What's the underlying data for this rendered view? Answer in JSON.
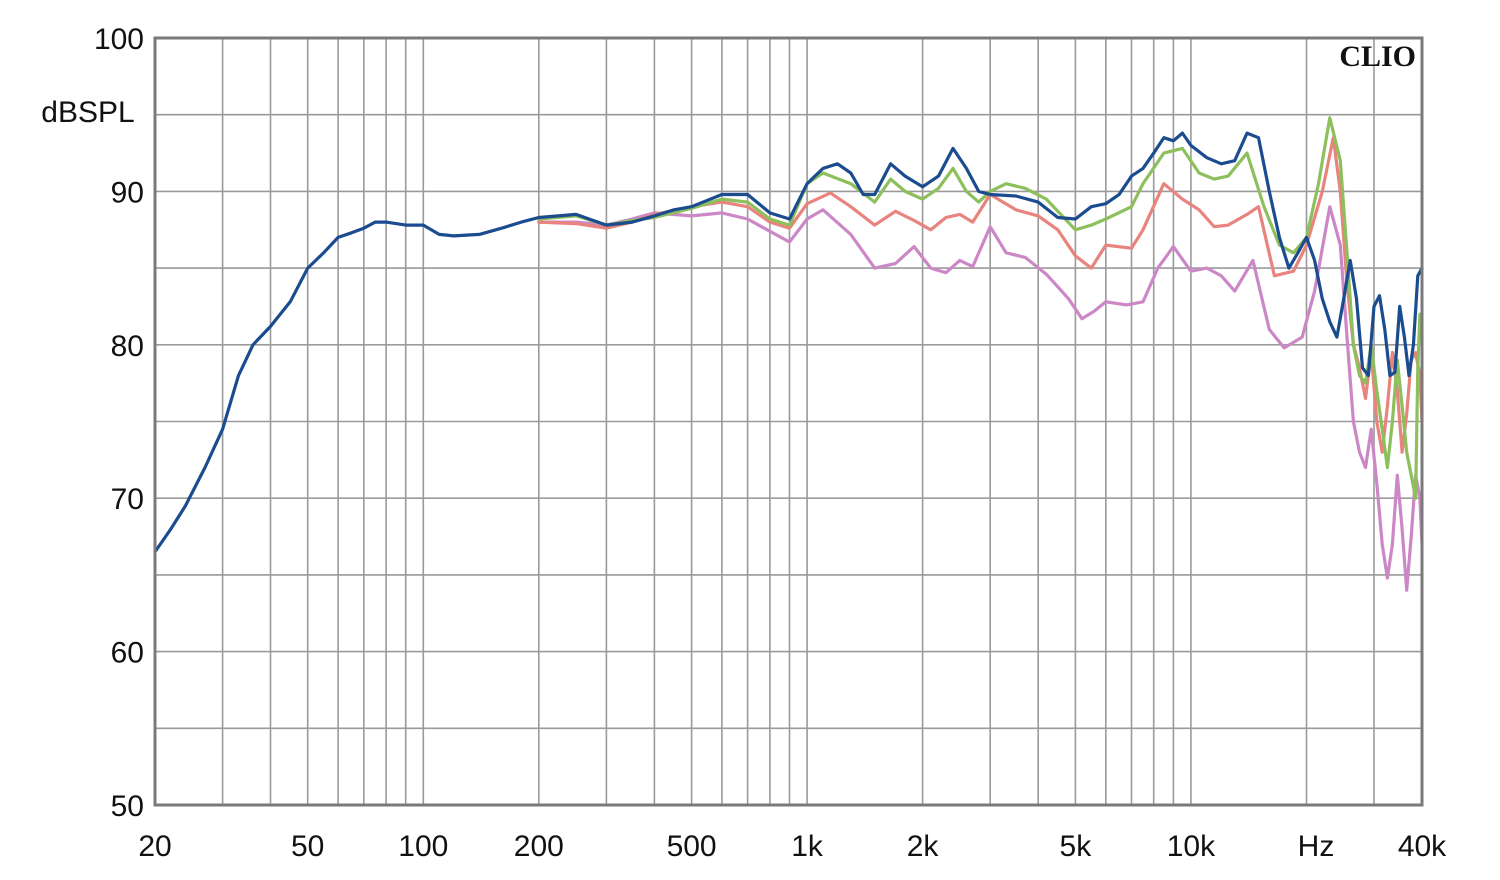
{
  "chart_data": {
    "type": "line",
    "title": "",
    "brand": "CLIO",
    "xlabel": "Hz",
    "ylabel": "dBSPL",
    "x_scale": "log",
    "xlim": [
      20,
      40000
    ],
    "ylim": [
      50,
      100
    ],
    "grid": true,
    "x_tick_labels": [
      {
        "value": 20,
        "label": "20"
      },
      {
        "value": 50,
        "label": "50"
      },
      {
        "value": 100,
        "label": "100"
      },
      {
        "value": 200,
        "label": "200"
      },
      {
        "value": 500,
        "label": "500"
      },
      {
        "value": 1000,
        "label": "1k"
      },
      {
        "value": 2000,
        "label": "2k"
      },
      {
        "value": 5000,
        "label": "5k"
      },
      {
        "value": 10000,
        "label": "10k"
      },
      {
        "value": 40000,
        "label": "40k"
      }
    ],
    "y_tick_labels": [
      {
        "value": 50,
        "label": "50"
      },
      {
        "value": 60,
        "label": "60"
      },
      {
        "value": 70,
        "label": "70"
      },
      {
        "value": 80,
        "label": "80"
      },
      {
        "value": 90,
        "label": "90"
      },
      {
        "value": 100,
        "label": "100"
      }
    ],
    "series": [
      {
        "color": "#cc88c6",
        "points": [
          [
            200,
            88.0
          ],
          [
            250,
            88.0
          ],
          [
            300,
            87.8
          ],
          [
            350,
            88.2
          ],
          [
            400,
            88.6
          ],
          [
            500,
            88.4
          ],
          [
            600,
            88.6
          ],
          [
            700,
            88.2
          ],
          [
            800,
            87.4
          ],
          [
            900,
            86.7
          ],
          [
            1000,
            88.2
          ],
          [
            1100,
            88.8
          ],
          [
            1300,
            87.2
          ],
          [
            1500,
            85.0
          ],
          [
            1700,
            85.3
          ],
          [
            1900,
            86.4
          ],
          [
            2100,
            85.0
          ],
          [
            2300,
            84.7
          ],
          [
            2500,
            85.5
          ],
          [
            2700,
            85.1
          ],
          [
            3000,
            87.7
          ],
          [
            3300,
            86.0
          ],
          [
            3700,
            85.7
          ],
          [
            4200,
            84.6
          ],
          [
            4800,
            83.0
          ],
          [
            5200,
            81.7
          ],
          [
            5600,
            82.2
          ],
          [
            6000,
            82.8
          ],
          [
            6800,
            82.6
          ],
          [
            7500,
            82.8
          ],
          [
            8200,
            85.0
          ],
          [
            9000,
            86.4
          ],
          [
            10000,
            84.8
          ],
          [
            11000,
            85.0
          ],
          [
            12000,
            84.5
          ],
          [
            13000,
            83.5
          ],
          [
            14500,
            85.5
          ],
          [
            16000,
            81.0
          ],
          [
            17500,
            79.8
          ],
          [
            19500,
            80.5
          ],
          [
            21000,
            83.5
          ],
          [
            23000,
            89.0
          ],
          [
            24500,
            86.5
          ],
          [
            25500,
            80.5
          ],
          [
            26500,
            75.0
          ],
          [
            27500,
            73.0
          ],
          [
            28500,
            72.0
          ],
          [
            29500,
            74.5
          ],
          [
            30500,
            71.0
          ],
          [
            31500,
            67.0
          ],
          [
            32500,
            64.8
          ],
          [
            33500,
            67.0
          ],
          [
            34500,
            71.5
          ],
          [
            35500,
            68.0
          ],
          [
            36500,
            64.0
          ],
          [
            37500,
            67.5
          ],
          [
            38500,
            71.5
          ],
          [
            39500,
            70.0
          ],
          [
            40000,
            67.0
          ]
        ]
      },
      {
        "color": "#e8837d",
        "points": [
          [
            200,
            88.0
          ],
          [
            250,
            87.9
          ],
          [
            300,
            87.6
          ],
          [
            350,
            88.0
          ],
          [
            400,
            88.5
          ],
          [
            500,
            89.0
          ],
          [
            600,
            89.3
          ],
          [
            700,
            89.0
          ],
          [
            800,
            88.0
          ],
          [
            900,
            87.6
          ],
          [
            1000,
            89.2
          ],
          [
            1150,
            89.9
          ],
          [
            1300,
            89.0
          ],
          [
            1500,
            87.8
          ],
          [
            1700,
            88.7
          ],
          [
            1900,
            88.1
          ],
          [
            2100,
            87.5
          ],
          [
            2300,
            88.3
          ],
          [
            2500,
            88.5
          ],
          [
            2700,
            88.0
          ],
          [
            3000,
            89.8
          ],
          [
            3500,
            88.8
          ],
          [
            4000,
            88.4
          ],
          [
            4500,
            87.5
          ],
          [
            5000,
            85.8
          ],
          [
            5500,
            85.0
          ],
          [
            6000,
            86.5
          ],
          [
            7000,
            86.3
          ],
          [
            7500,
            87.5
          ],
          [
            8500,
            90.5
          ],
          [
            9500,
            89.5
          ],
          [
            10500,
            88.8
          ],
          [
            11500,
            87.7
          ],
          [
            12500,
            87.8
          ],
          [
            14000,
            88.5
          ],
          [
            15000,
            89.0
          ],
          [
            16500,
            84.5
          ],
          [
            18500,
            84.8
          ],
          [
            20000,
            86.5
          ],
          [
            22000,
            90.0
          ],
          [
            23500,
            93.5
          ],
          [
            24500,
            90.0
          ],
          [
            25500,
            84.0
          ],
          [
            26500,
            80.0
          ],
          [
            27500,
            78.5
          ],
          [
            28500,
            76.5
          ],
          [
            29500,
            79.5
          ],
          [
            30500,
            75.0
          ],
          [
            31500,
            73.0
          ],
          [
            32500,
            76.0
          ],
          [
            33500,
            79.5
          ],
          [
            34500,
            77.0
          ],
          [
            35500,
            73.0
          ],
          [
            36500,
            75.5
          ],
          [
            37500,
            79.0
          ],
          [
            38500,
            79.5
          ],
          [
            39500,
            78.0
          ],
          [
            40000,
            75.0
          ]
        ]
      },
      {
        "color": "#8dbf5c",
        "points": [
          [
            200,
            88.2
          ],
          [
            250,
            88.4
          ],
          [
            300,
            87.8
          ],
          [
            350,
            88.1
          ],
          [
            400,
            88.3
          ],
          [
            500,
            88.9
          ],
          [
            600,
            89.5
          ],
          [
            700,
            89.3
          ],
          [
            800,
            88.2
          ],
          [
            900,
            87.8
          ],
          [
            1000,
            90.5
          ],
          [
            1100,
            91.2
          ],
          [
            1300,
            90.5
          ],
          [
            1500,
            89.3
          ],
          [
            1650,
            90.8
          ],
          [
            1800,
            90.0
          ],
          [
            2000,
            89.5
          ],
          [
            2200,
            90.2
          ],
          [
            2400,
            91.5
          ],
          [
            2600,
            90.0
          ],
          [
            2800,
            89.3
          ],
          [
            3000,
            90.0
          ],
          [
            3300,
            90.5
          ],
          [
            3700,
            90.2
          ],
          [
            4200,
            89.5
          ],
          [
            5000,
            87.5
          ],
          [
            5500,
            87.8
          ],
          [
            6000,
            88.2
          ],
          [
            7000,
            89.0
          ],
          [
            7500,
            90.5
          ],
          [
            8500,
            92.5
          ],
          [
            9500,
            92.8
          ],
          [
            10500,
            91.2
          ],
          [
            11500,
            90.8
          ],
          [
            12500,
            91.0
          ],
          [
            14000,
            92.5
          ],
          [
            15500,
            89.0
          ],
          [
            17000,
            86.5
          ],
          [
            18500,
            86.0
          ],
          [
            20000,
            87.0
          ],
          [
            21500,
            90.5
          ],
          [
            23000,
            94.8
          ],
          [
            24500,
            92.0
          ],
          [
            25500,
            86.0
          ],
          [
            26500,
            80.0
          ],
          [
            27500,
            78.0
          ],
          [
            28500,
            77.5
          ],
          [
            29500,
            80.0
          ],
          [
            30500,
            77.0
          ],
          [
            31500,
            74.5
          ],
          [
            32500,
            72.0
          ],
          [
            33500,
            75.0
          ],
          [
            34500,
            79.0
          ],
          [
            35500,
            76.0
          ],
          [
            36500,
            73.0
          ],
          [
            37500,
            71.5
          ],
          [
            38500,
            70.0
          ],
          [
            39000,
            78.5
          ],
          [
            39500,
            82.0
          ],
          [
            40000,
            81.5
          ]
        ]
      },
      {
        "color": "#1a4c8f",
        "points": [
          [
            20,
            66.5
          ],
          [
            22,
            68.0
          ],
          [
            24,
            69.5
          ],
          [
            27,
            72.0
          ],
          [
            30,
            74.5
          ],
          [
            33,
            78.0
          ],
          [
            36,
            80.0
          ],
          [
            40,
            81.2
          ],
          [
            45,
            82.8
          ],
          [
            50,
            85.0
          ],
          [
            55,
            86.0
          ],
          [
            60,
            87.0
          ],
          [
            65,
            87.3
          ],
          [
            70,
            87.6
          ],
          [
            75,
            88.0
          ],
          [
            80,
            88.0
          ],
          [
            90,
            87.8
          ],
          [
            100,
            87.8
          ],
          [
            110,
            87.2
          ],
          [
            120,
            87.1
          ],
          [
            140,
            87.2
          ],
          [
            160,
            87.6
          ],
          [
            180,
            88.0
          ],
          [
            200,
            88.3
          ],
          [
            250,
            88.5
          ],
          [
            300,
            87.8
          ],
          [
            350,
            88.0
          ],
          [
            400,
            88.4
          ],
          [
            450,
            88.8
          ],
          [
            500,
            89.0
          ],
          [
            600,
            89.8
          ],
          [
            700,
            89.8
          ],
          [
            800,
            88.6
          ],
          [
            900,
            88.2
          ],
          [
            1000,
            90.5
          ],
          [
            1100,
            91.5
          ],
          [
            1200,
            91.8
          ],
          [
            1300,
            91.2
          ],
          [
            1400,
            89.8
          ],
          [
            1500,
            89.8
          ],
          [
            1650,
            91.8
          ],
          [
            1800,
            91.0
          ],
          [
            2000,
            90.3
          ],
          [
            2200,
            91.0
          ],
          [
            2400,
            92.8
          ],
          [
            2600,
            91.5
          ],
          [
            2800,
            90.0
          ],
          [
            3000,
            89.8
          ],
          [
            3500,
            89.7
          ],
          [
            4000,
            89.3
          ],
          [
            4500,
            88.3
          ],
          [
            5000,
            88.2
          ],
          [
            5500,
            89.0
          ],
          [
            6000,
            89.2
          ],
          [
            6500,
            89.8
          ],
          [
            7000,
            91.0
          ],
          [
            7500,
            91.5
          ],
          [
            8000,
            92.5
          ],
          [
            8500,
            93.5
          ],
          [
            9000,
            93.3
          ],
          [
            9500,
            93.8
          ],
          [
            10000,
            93.0
          ],
          [
            11000,
            92.2
          ],
          [
            12000,
            91.8
          ],
          [
            13000,
            92.0
          ],
          [
            14000,
            93.8
          ],
          [
            15000,
            93.5
          ],
          [
            16000,
            90.0
          ],
          [
            17000,
            87.0
          ],
          [
            18000,
            85.0
          ],
          [
            19000,
            86.0
          ],
          [
            20000,
            87.0
          ],
          [
            21000,
            85.5
          ],
          [
            22000,
            83.0
          ],
          [
            23000,
            81.5
          ],
          [
            24000,
            80.5
          ],
          [
            25000,
            83.0
          ],
          [
            26000,
            85.5
          ],
          [
            27000,
            83.0
          ],
          [
            28000,
            78.5
          ],
          [
            29000,
            78.0
          ],
          [
            30000,
            82.5
          ],
          [
            31000,
            83.2
          ],
          [
            32000,
            81.0
          ],
          [
            33000,
            78.0
          ],
          [
            34000,
            78.2
          ],
          [
            35000,
            82.5
          ],
          [
            36000,
            80.5
          ],
          [
            37000,
            78.0
          ],
          [
            38000,
            80.0
          ],
          [
            39000,
            84.5
          ],
          [
            40000,
            85.0
          ]
        ]
      }
    ]
  }
}
